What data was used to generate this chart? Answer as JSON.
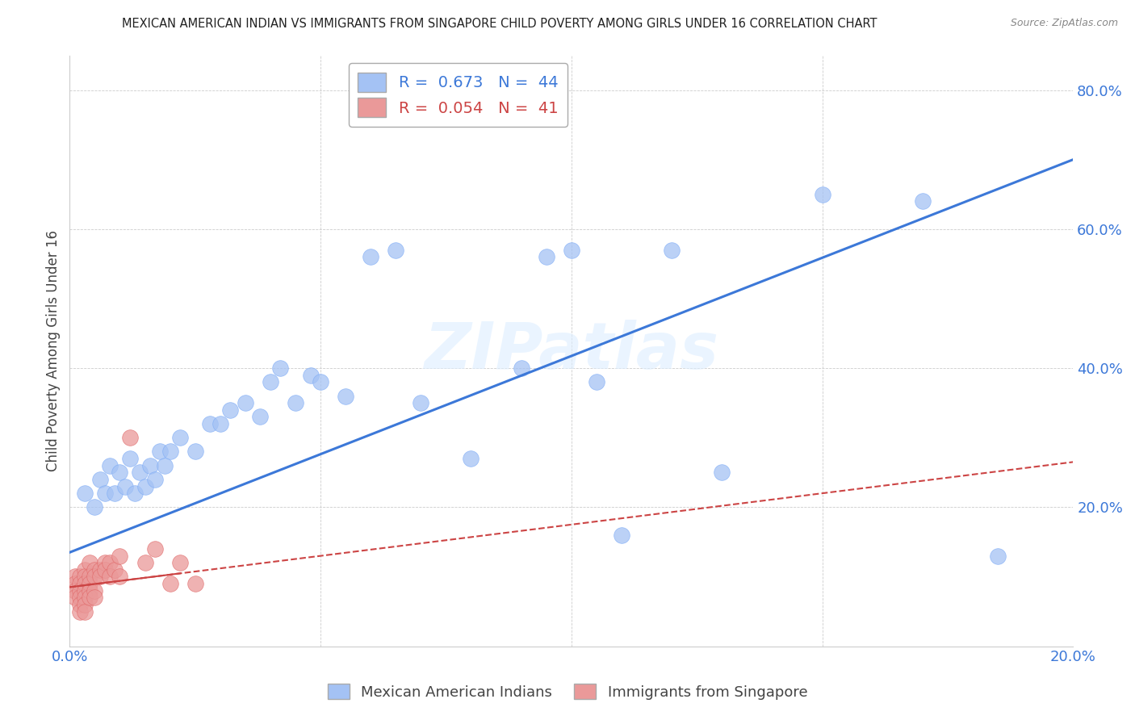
{
  "title": "MEXICAN AMERICAN INDIAN VS IMMIGRANTS FROM SINGAPORE CHILD POVERTY AMONG GIRLS UNDER 16 CORRELATION CHART",
  "source": "Source: ZipAtlas.com",
  "ylabel": "Child Poverty Among Girls Under 16",
  "xlim": [
    0.0,
    0.2
  ],
  "ylim": [
    0.0,
    0.85
  ],
  "yticks": [
    0.0,
    0.2,
    0.4,
    0.6,
    0.8
  ],
  "xticks": [
    0.0,
    0.05,
    0.1,
    0.15,
    0.2
  ],
  "xtick_labels": [
    "0.0%",
    "",
    "",
    "",
    "20.0%"
  ],
  "ytick_labels": [
    "",
    "20.0%",
    "40.0%",
    "60.0%",
    "80.0%"
  ],
  "blue_R": 0.673,
  "blue_N": 44,
  "pink_R": 0.054,
  "pink_N": 41,
  "blue_color": "#a4c2f4",
  "pink_color": "#ea9999",
  "blue_line_color": "#3c78d8",
  "pink_line_color": "#cc4444",
  "watermark": "ZIPatlas",
  "blue_scatter_x": [
    0.003,
    0.005,
    0.006,
    0.007,
    0.008,
    0.009,
    0.01,
    0.011,
    0.012,
    0.013,
    0.014,
    0.015,
    0.016,
    0.017,
    0.018,
    0.019,
    0.02,
    0.022,
    0.025,
    0.028,
    0.03,
    0.032,
    0.035,
    0.038,
    0.04,
    0.042,
    0.045,
    0.048,
    0.05,
    0.055,
    0.06,
    0.065,
    0.07,
    0.08,
    0.09,
    0.095,
    0.1,
    0.105,
    0.11,
    0.12,
    0.13,
    0.15,
    0.17,
    0.185
  ],
  "blue_scatter_y": [
    0.22,
    0.2,
    0.24,
    0.22,
    0.26,
    0.22,
    0.25,
    0.23,
    0.27,
    0.22,
    0.25,
    0.23,
    0.26,
    0.24,
    0.28,
    0.26,
    0.28,
    0.3,
    0.28,
    0.32,
    0.32,
    0.34,
    0.35,
    0.33,
    0.38,
    0.4,
    0.35,
    0.39,
    0.38,
    0.36,
    0.56,
    0.57,
    0.35,
    0.27,
    0.4,
    0.56,
    0.57,
    0.38,
    0.16,
    0.57,
    0.25,
    0.65,
    0.64,
    0.13
  ],
  "pink_scatter_x": [
    0.001,
    0.001,
    0.001,
    0.001,
    0.002,
    0.002,
    0.002,
    0.002,
    0.002,
    0.002,
    0.003,
    0.003,
    0.003,
    0.003,
    0.003,
    0.003,
    0.003,
    0.004,
    0.004,
    0.004,
    0.004,
    0.004,
    0.005,
    0.005,
    0.005,
    0.005,
    0.006,
    0.006,
    0.007,
    0.007,
    0.008,
    0.008,
    0.009,
    0.01,
    0.01,
    0.012,
    0.015,
    0.017,
    0.02,
    0.022,
    0.025
  ],
  "pink_scatter_y": [
    0.1,
    0.09,
    0.08,
    0.07,
    0.1,
    0.09,
    0.08,
    0.07,
    0.06,
    0.05,
    0.11,
    0.1,
    0.09,
    0.08,
    0.07,
    0.06,
    0.05,
    0.12,
    0.1,
    0.09,
    0.08,
    0.07,
    0.11,
    0.1,
    0.08,
    0.07,
    0.11,
    0.1,
    0.12,
    0.11,
    0.12,
    0.1,
    0.11,
    0.13,
    0.1,
    0.3,
    0.12,
    0.14,
    0.09,
    0.12,
    0.09
  ],
  "blue_line_y0": 0.135,
  "blue_line_y1": 0.7,
  "pink_line_y0": 0.085,
  "pink_line_y1": 0.265
}
